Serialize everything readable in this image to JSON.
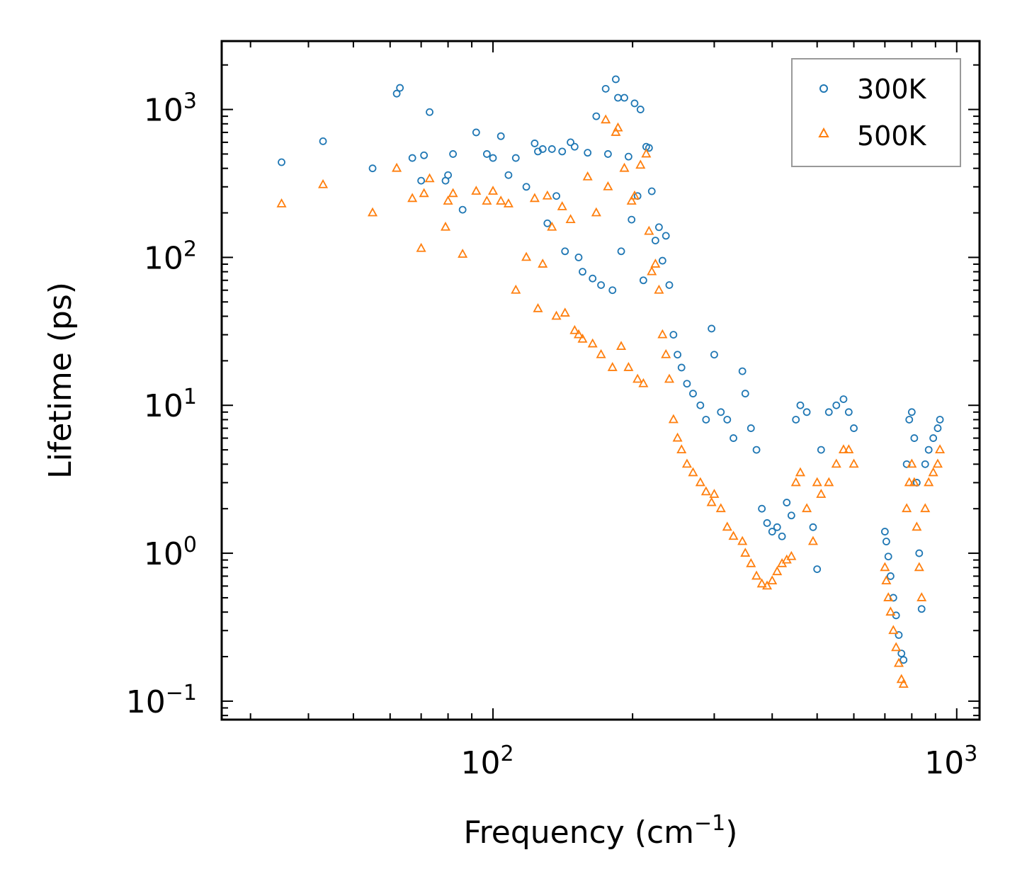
{
  "chart_data": {
    "type": "scatter",
    "title": "",
    "xlabel": {
      "text": "Frequency (cm",
      "superscript": "−1",
      "suffix": ")"
    },
    "ylabel": "Lifetime (ps)",
    "xscale": "log",
    "yscale": "log",
    "xlim": [
      26,
      1120
    ],
    "ylim": [
      0.075,
      2900
    ],
    "x_ticks": [
      {
        "value": 100,
        "base": "10",
        "exp": "2"
      },
      {
        "value": 1000,
        "base": "10",
        "exp": "3"
      }
    ],
    "y_ticks": [
      {
        "value": 0.1,
        "base": "10",
        "exp": "−1"
      },
      {
        "value": 1,
        "base": "10",
        "exp": "0"
      },
      {
        "value": 10,
        "base": "10",
        "exp": "1"
      },
      {
        "value": 100,
        "base": "10",
        "exp": "2"
      },
      {
        "value": 1000,
        "base": "10",
        "exp": "3"
      }
    ],
    "legend": {
      "position": "top-right"
    },
    "grid": false,
    "series": [
      {
        "name": "300K",
        "marker": "circle-open",
        "color": "#1f77b4",
        "points": [
          [
            35,
            440
          ],
          [
            43,
            610
          ],
          [
            55,
            400
          ],
          [
            62,
            1280
          ],
          [
            63,
            1400
          ],
          [
            67,
            470
          ],
          [
            70,
            330
          ],
          [
            71,
            490
          ],
          [
            73,
            960
          ],
          [
            79,
            330
          ],
          [
            80,
            360
          ],
          [
            82,
            500
          ],
          [
            86,
            210
          ],
          [
            92,
            700
          ],
          [
            97,
            500
          ],
          [
            100,
            470
          ],
          [
            104,
            660
          ],
          [
            108,
            360
          ],
          [
            112,
            470
          ],
          [
            118,
            300
          ],
          [
            123,
            590
          ],
          [
            125,
            520
          ],
          [
            128,
            540
          ],
          [
            131,
            170
          ],
          [
            134,
            540
          ],
          [
            137,
            260
          ],
          [
            141,
            520
          ],
          [
            143,
            110
          ],
          [
            147,
            600
          ],
          [
            150,
            560
          ],
          [
            153,
            100
          ],
          [
            156,
            80
          ],
          [
            160,
            510
          ],
          [
            164,
            72
          ],
          [
            167,
            900
          ],
          [
            171,
            65
          ],
          [
            175,
            1380
          ],
          [
            177,
            500
          ],
          [
            181,
            60
          ],
          [
            184,
            1600
          ],
          [
            186,
            1200
          ],
          [
            189,
            110
          ],
          [
            192,
            1200
          ],
          [
            196,
            480
          ],
          [
            199,
            180
          ],
          [
            202,
            1100
          ],
          [
            205,
            260
          ],
          [
            208,
            1000
          ],
          [
            211,
            70
          ],
          [
            214,
            560
          ],
          [
            217,
            550
          ],
          [
            220,
            280
          ],
          [
            224,
            130
          ],
          [
            228,
            160
          ],
          [
            232,
            95
          ],
          [
            236,
            140
          ],
          [
            240,
            65
          ],
          [
            245,
            30
          ],
          [
            250,
            22
          ],
          [
            255,
            18
          ],
          [
            262,
            14
          ],
          [
            270,
            12
          ],
          [
            280,
            10
          ],
          [
            288,
            8
          ],
          [
            296,
            33
          ],
          [
            300,
            22
          ],
          [
            310,
            9
          ],
          [
            320,
            8
          ],
          [
            330,
            6
          ],
          [
            345,
            17
          ],
          [
            350,
            12
          ],
          [
            360,
            7
          ],
          [
            370,
            5
          ],
          [
            380,
            2
          ],
          [
            390,
            1.6
          ],
          [
            400,
            1.4
          ],
          [
            410,
            1.5
          ],
          [
            420,
            1.3
          ],
          [
            430,
            2.2
          ],
          [
            440,
            1.8
          ],
          [
            450,
            8
          ],
          [
            460,
            10
          ],
          [
            475,
            9
          ],
          [
            490,
            1.5
          ],
          [
            500,
            0.78
          ],
          [
            510,
            5
          ],
          [
            530,
            9
          ],
          [
            550,
            10
          ],
          [
            570,
            11
          ],
          [
            585,
            9
          ],
          [
            600,
            7
          ],
          [
            700,
            1.4
          ],
          [
            705,
            1.2
          ],
          [
            712,
            0.95
          ],
          [
            720,
            0.7
          ],
          [
            730,
            0.5
          ],
          [
            740,
            0.38
          ],
          [
            750,
            0.28
          ],
          [
            760,
            0.21
          ],
          [
            768,
            0.19
          ],
          [
            780,
            4
          ],
          [
            790,
            8
          ],
          [
            800,
            9
          ],
          [
            810,
            6
          ],
          [
            820,
            3
          ],
          [
            830,
            1
          ],
          [
            840,
            0.42
          ],
          [
            855,
            4
          ],
          [
            870,
            5
          ],
          [
            890,
            6
          ],
          [
            910,
            7
          ],
          [
            920,
            8
          ]
        ]
      },
      {
        "name": "500K",
        "marker": "triangle-open",
        "color": "#ff7f0e",
        "points": [
          [
            35,
            230
          ],
          [
            43,
            310
          ],
          [
            55,
            200
          ],
          [
            62,
            400
          ],
          [
            67,
            250
          ],
          [
            70,
            115
          ],
          [
            71,
            270
          ],
          [
            73,
            340
          ],
          [
            79,
            160
          ],
          [
            80,
            240
          ],
          [
            82,
            270
          ],
          [
            86,
            105
          ],
          [
            92,
            280
          ],
          [
            97,
            240
          ],
          [
            100,
            280
          ],
          [
            104,
            240
          ],
          [
            108,
            230
          ],
          [
            112,
            60
          ],
          [
            118,
            100
          ],
          [
            123,
            250
          ],
          [
            125,
            45
          ],
          [
            128,
            90
          ],
          [
            131,
            260
          ],
          [
            134,
            160
          ],
          [
            137,
            40
          ],
          [
            141,
            220
          ],
          [
            143,
            42
          ],
          [
            147,
            180
          ],
          [
            150,
            32
          ],
          [
            153,
            30
          ],
          [
            156,
            28
          ],
          [
            160,
            350
          ],
          [
            164,
            26
          ],
          [
            167,
            200
          ],
          [
            171,
            22
          ],
          [
            175,
            850
          ],
          [
            177,
            300
          ],
          [
            181,
            18
          ],
          [
            184,
            700
          ],
          [
            186,
            750
          ],
          [
            189,
            25
          ],
          [
            192,
            400
          ],
          [
            196,
            18
          ],
          [
            199,
            240
          ],
          [
            202,
            260
          ],
          [
            205,
            15
          ],
          [
            208,
            420
          ],
          [
            211,
            14
          ],
          [
            214,
            500
          ],
          [
            217,
            150
          ],
          [
            220,
            80
          ],
          [
            224,
            90
          ],
          [
            228,
            60
          ],
          [
            232,
            30
          ],
          [
            236,
            22
          ],
          [
            240,
            15
          ],
          [
            245,
            8
          ],
          [
            250,
            6
          ],
          [
            255,
            5
          ],
          [
            262,
            4
          ],
          [
            270,
            3.5
          ],
          [
            280,
            3
          ],
          [
            288,
            2.6
          ],
          [
            296,
            2.2
          ],
          [
            300,
            2.5
          ],
          [
            310,
            2
          ],
          [
            320,
            1.5
          ],
          [
            330,
            1.3
          ],
          [
            345,
            1.2
          ],
          [
            350,
            1
          ],
          [
            360,
            0.85
          ],
          [
            370,
            0.7
          ],
          [
            380,
            0.62
          ],
          [
            390,
            0.6
          ],
          [
            400,
            0.65
          ],
          [
            410,
            0.75
          ],
          [
            420,
            0.85
          ],
          [
            430,
            0.9
          ],
          [
            440,
            0.95
          ],
          [
            450,
            3
          ],
          [
            460,
            3.5
          ],
          [
            475,
            2
          ],
          [
            490,
            1.2
          ],
          [
            500,
            3
          ],
          [
            510,
            2.5
          ],
          [
            530,
            3
          ],
          [
            550,
            4
          ],
          [
            570,
            5
          ],
          [
            585,
            5
          ],
          [
            600,
            4
          ],
          [
            700,
            0.8
          ],
          [
            705,
            0.65
          ],
          [
            712,
            0.5
          ],
          [
            720,
            0.4
          ],
          [
            730,
            0.3
          ],
          [
            740,
            0.23
          ],
          [
            750,
            0.18
          ],
          [
            760,
            0.14
          ],
          [
            768,
            0.13
          ],
          [
            780,
            2
          ],
          [
            790,
            3
          ],
          [
            800,
            4
          ],
          [
            810,
            3
          ],
          [
            820,
            1.5
          ],
          [
            830,
            0.8
          ],
          [
            840,
            0.5
          ],
          [
            855,
            2
          ],
          [
            870,
            3
          ],
          [
            890,
            3.5
          ],
          [
            910,
            4
          ],
          [
            920,
            5
          ]
        ]
      }
    ]
  }
}
